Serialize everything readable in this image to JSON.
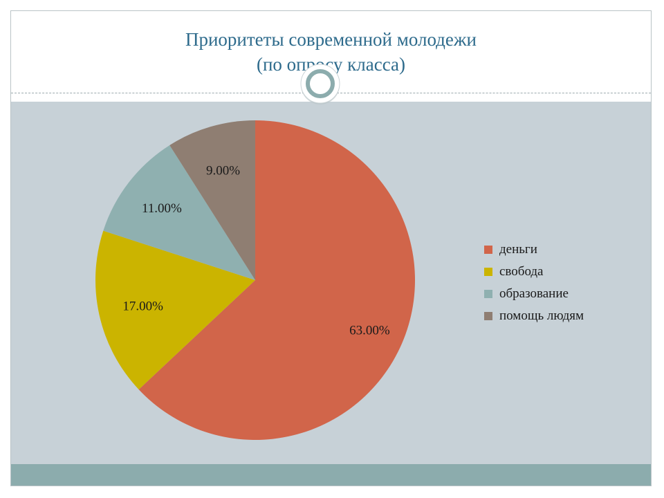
{
  "slide": {
    "title_line1": "Приоритеты современной молодежи",
    "title_line2": "(по опросу класса)",
    "colors": {
      "title": "#2e6b8c",
      "content_bg": "#c7d1d7",
      "footer": "#8cacad"
    }
  },
  "chart_data": {
    "type": "pie",
    "categories": [
      "деньги",
      "свобода",
      "образование",
      "помощь людям"
    ],
    "values": [
      63.0,
      17.0,
      11.0,
      9.0
    ],
    "data_labels": [
      "63.00%",
      "17.00%",
      "11.00%",
      "9.00%"
    ],
    "colors": [
      "#d1654a",
      "#cbb400",
      "#8fb0b0",
      "#8f7e72"
    ],
    "legend_position": "right",
    "start_angle": "top, clockwise"
  }
}
